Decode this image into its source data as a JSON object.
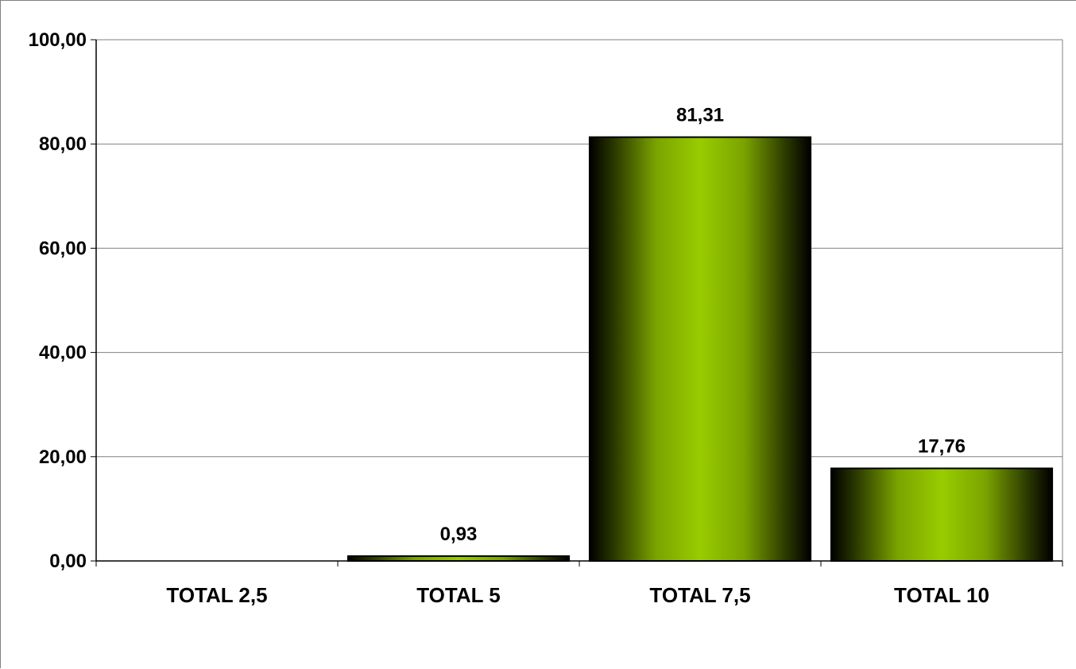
{
  "chart_data": {
    "type": "bar",
    "categories": [
      "TOTAL 2,5",
      "TOTAL 5",
      "TOTAL 7,5",
      "TOTAL 10"
    ],
    "values": [
      0,
      0.93,
      81.31,
      17.76
    ],
    "data_labels": [
      "",
      "0,93",
      "81,31",
      "17,76"
    ],
    "y_ticks": [
      0,
      20,
      40,
      60,
      80,
      100
    ],
    "y_tick_labels": [
      "0,00",
      "20,00",
      "40,00",
      "60,00",
      "80,00",
      "100,00"
    ],
    "ylim": [
      0,
      100
    ],
    "title": "",
    "xlabel": "",
    "ylabel": "",
    "grid": true,
    "legend": "none",
    "colors": {
      "bar_center": "#99cc00",
      "bar_edge": "#000000",
      "gridline": "#808080"
    }
  }
}
